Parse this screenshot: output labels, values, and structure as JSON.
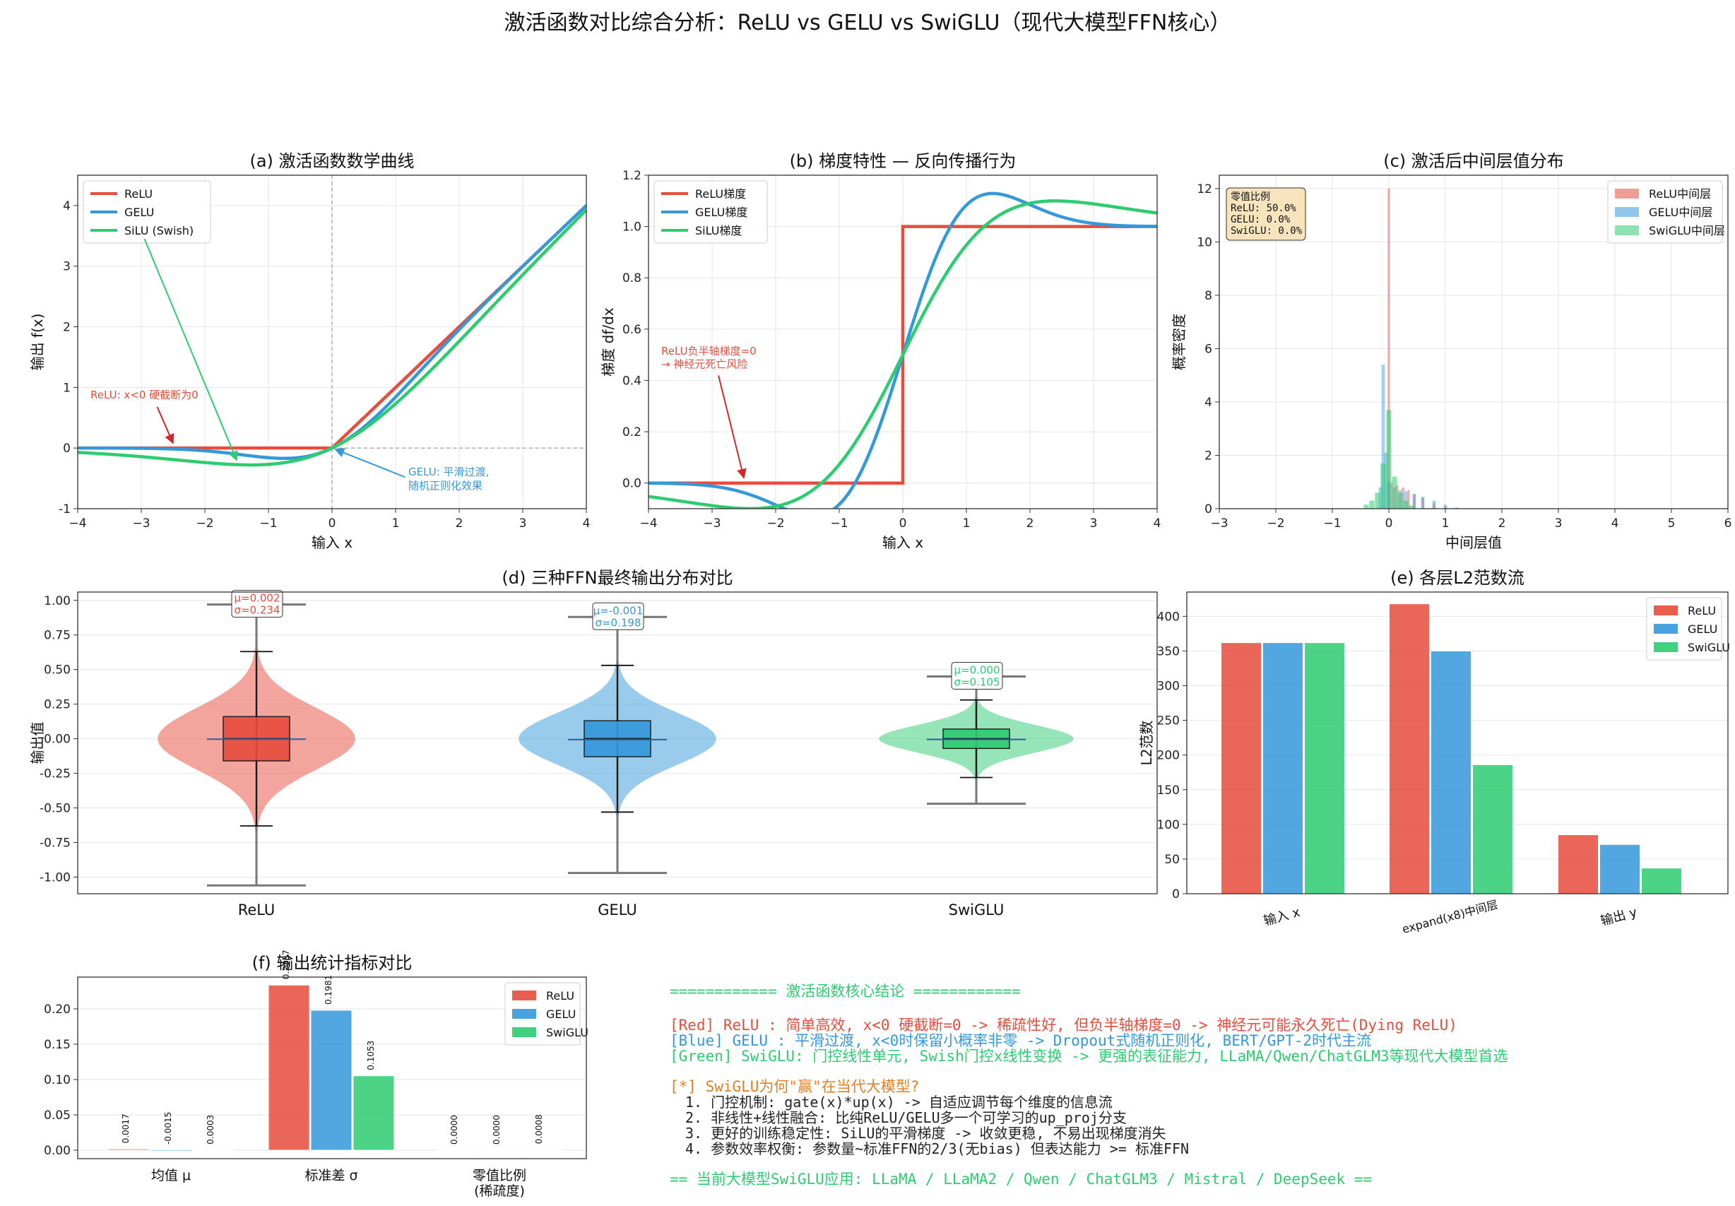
{
  "title": "激活函数对比综合分析：ReLU vs GELU vs SwiGLU（现代大模型FFN核心）",
  "colors": {
    "relu": "#e74c3c",
    "gelu": "#3498db",
    "swiglu": "#2ecc71",
    "orange": "#e67e22",
    "axis": "#333333",
    "grid": "#e6e6e6"
  },
  "panels": {
    "a": {
      "title": "(a) 激活函数数学曲线",
      "xlabel": "输入 x",
      "ylabel": "输出 f(x)",
      "legend": [
        "ReLU",
        "GELU",
        "SiLU (Swish)"
      ],
      "annotations": {
        "relu": "ReLU: x<0 硬截断为0",
        "gelu_line1": "GELU: 平滑过渡,",
        "gelu_line2": "随机正则化效果"
      }
    },
    "b": {
      "title": "(b) 梯度特性 — 反向传播行为",
      "xlabel": "输入 x",
      "ylabel": "梯度 df/dx",
      "legend": [
        "ReLU梯度",
        "GELU梯度",
        "SiLU梯度"
      ],
      "annotations": {
        "line1": "ReLU负半轴梯度=0",
        "line2": "→ 神经元死亡风险"
      }
    },
    "c": {
      "title": "(c) 激活后中间层值分布",
      "xlabel": "中间层值",
      "ylabel": "概率密度",
      "legend": [
        "ReLU中间层",
        "GELU中间层",
        "SwiGLU中间层"
      ],
      "zero_box": [
        "零值比例",
        "ReLU: 50.0%",
        "GELU: 0.0%",
        "SwiGLU: 0.0%"
      ]
    },
    "d": {
      "title": "(d) 三种FFN最终输出分布对比",
      "ylabel": "输出值",
      "stats": [
        {
          "mu": "μ=0.002",
          "sigma": "σ=0.234"
        },
        {
          "mu": "μ=-0.001",
          "sigma": "σ=0.198"
        },
        {
          "mu": "μ=0.000",
          "sigma": "σ=0.105"
        }
      ]
    },
    "e": {
      "title": "(e) 各层L2范数流",
      "ylabel": "L2范数",
      "legend": [
        "ReLU",
        "GELU",
        "SwiGLU"
      ]
    },
    "f": {
      "title": "(f) 输出统计指标对比",
      "legend": [
        "ReLU",
        "GELU",
        "SwiGLU"
      ],
      "category_lines": [
        [
          "均值 μ"
        ],
        [
          "标准差 σ"
        ],
        [
          "零值比例",
          "(稀疏度)"
        ]
      ],
      "bar_labels": [
        [
          "0.0017",
          "-0.0015",
          "0.0003"
        ],
        [
          "0.2337",
          "0.1981",
          "0.1053"
        ],
        [
          "0.0000",
          "0.0000",
          "0.0008"
        ]
      ]
    }
  },
  "conclusions": {
    "header": "============ 激活函数核心结论 ============",
    "red": "[Red] ReLU    : 简单高效, x<0 硬截断=0 -> 稀疏性好, 但负半轴梯度=0 -> 神经元可能永久死亡(Dying ReLU)",
    "blue": "[Blue] GELU   : 平滑过渡, x<0时保留小概率非零 -> Dropout式随机正则化, BERT/GPT-2时代主流",
    "green": "[Green] SwiGLU: 门控线性单元, Swish门控x线性变换 -> 更强的表征能力, LLaMA/Qwen/ChatGLM3等现代大模型首选",
    "why": "[*] SwiGLU为何\"赢\"在当代大模型?",
    "points": [
      "1. 门控机制: gate(x)*up(x) -> 自适应调节每个维度的信息流",
      "2. 非线性+线性融合: 比纯ReLU/GELU多一个可学习的up_proj分支",
      "3. 更好的训练稳定性: SiLU的平滑梯度 -> 收敛更稳, 不易出现梯度消失",
      "4. 参数效率权衡: 参数量~标准FFN的2/3(无bias) 但表达能力 >= 标准FFN"
    ],
    "footer": "== 当前大模型SwiGLU应用: LLaMA / LLaMA2 / Qwen / ChatGLM3 / Mistral / DeepSeek =="
  },
  "chart_data": [
    {
      "id": "a",
      "type": "line",
      "xlim": [
        -4,
        4
      ],
      "ylim": [
        -1,
        4.5
      ],
      "xticks": [
        -4,
        -3,
        -2,
        -1,
        0,
        1,
        2,
        3,
        4
      ],
      "yticks": [
        -1,
        0,
        1,
        2,
        3,
        4
      ],
      "grid": true,
      "legend": "top-left",
      "series": [
        {
          "name": "ReLU",
          "function": "max(0, x)",
          "x": [
            -4,
            -2,
            0,
            2,
            4
          ],
          "y": [
            0,
            0,
            0,
            2,
            4
          ]
        },
        {
          "name": "GELU",
          "function": "x*Phi(x)",
          "x": [
            -4,
            -2,
            -1,
            -0.75,
            0,
            1,
            2,
            4
          ],
          "y": [
            0,
            -0.045,
            -0.159,
            -0.17,
            0,
            0.841,
            1.955,
            4
          ]
        },
        {
          "name": "SiLU (Swish)",
          "function": "x*sigmoid(x)",
          "x": [
            -4,
            -2,
            -1.28,
            -1,
            0,
            1,
            2,
            4
          ],
          "y": [
            -0.072,
            -0.238,
            -0.278,
            -0.269,
            0,
            0.731,
            1.762,
            3.928
          ]
        }
      ]
    },
    {
      "id": "b",
      "type": "line",
      "xlim": [
        -4,
        4
      ],
      "ylim": [
        -0.1,
        1.2
      ],
      "xticks": [
        -4,
        -3,
        -2,
        -1,
        0,
        1,
        2,
        3,
        4
      ],
      "yticks": [
        0.0,
        0.2,
        0.4,
        0.6,
        0.8,
        1.0,
        1.2
      ],
      "grid": true,
      "legend": "top-left",
      "series": [
        {
          "name": "ReLU梯度",
          "x": [
            -4,
            0,
            0,
            4
          ],
          "y": [
            0,
            0,
            1,
            1
          ]
        },
        {
          "name": "GELU梯度",
          "x": [
            -4,
            -2,
            -1,
            0,
            1,
            1.5,
            2,
            4
          ],
          "y": [
            0,
            -0.085,
            -0.083,
            0.5,
            1.083,
            1.129,
            1.085,
            1.0
          ]
        },
        {
          "name": "SiLU梯度",
          "x": [
            -4,
            -2,
            -1,
            0,
            1,
            2.4,
            4
          ],
          "y": [
            -0.053,
            -0.091,
            0.072,
            0.5,
            0.928,
            1.1,
            1.053
          ]
        }
      ]
    },
    {
      "id": "c",
      "type": "histogram",
      "xlim": [
        -3,
        6
      ],
      "ylim": [
        0,
        12.5
      ],
      "xticks": [
        -3,
        -2,
        -1,
        0,
        1,
        2,
        3,
        4,
        5,
        6
      ],
      "yticks": [
        0,
        2,
        4,
        6,
        8,
        10,
        12
      ],
      "grid": true,
      "legend": "top-right",
      "series": [
        {
          "name": "ReLU中间层",
          "bin_centers": [
            0.0,
            0.05,
            0.15,
            0.25,
            0.35,
            0.45,
            0.6,
            0.8,
            1.0
          ],
          "density": [
            12.0,
            0.95,
            0.88,
            0.8,
            0.7,
            0.55,
            0.4,
            0.2,
            0.08
          ]
        },
        {
          "name": "GELU中间层",
          "bin_centers": [
            -0.15,
            -0.1,
            -0.05,
            0.0,
            0.1,
            0.2,
            0.3,
            0.45,
            0.6,
            0.8,
            1.0,
            1.2
          ],
          "density": [
            0.8,
            5.4,
            2.1,
            1.0,
            0.8,
            0.7,
            0.65,
            0.55,
            0.45,
            0.3,
            0.15,
            0.05
          ]
        },
        {
          "name": "SwiGLU中间层",
          "bin_centers": [
            -0.4,
            -0.3,
            -0.2,
            -0.1,
            0.0,
            0.1,
            0.2,
            0.3,
            0.4
          ],
          "density": [
            0.15,
            0.3,
            0.6,
            1.7,
            3.7,
            1.2,
            0.6,
            0.3,
            0.12
          ]
        }
      ],
      "zero_fraction": {
        "ReLU": "50.0%",
        "GELU": "0.0%",
        "SwiGLU": "0.0%"
      }
    },
    {
      "id": "d",
      "type": "violin",
      "categories": [
        "ReLU",
        "GELU",
        "SwiGLU"
      ],
      "ylim": [
        -1.12,
        1.06
      ],
      "yticks": [
        -1.0,
        -0.75,
        -0.5,
        -0.25,
        0.0,
        0.25,
        0.5,
        0.75,
        1.0
      ],
      "grid": true,
      "series": [
        {
          "name": "ReLU",
          "mean": 0.002,
          "std": 0.234,
          "min": -1.06,
          "max": 0.97,
          "q1": -0.16,
          "median": 0.0,
          "q3": 0.16,
          "whisker_low": -0.63,
          "whisker_high": 0.63
        },
        {
          "name": "GELU",
          "mean": -0.001,
          "std": 0.198,
          "min": -0.97,
          "max": 0.88,
          "q1": -0.13,
          "median": 0.0,
          "q3": 0.13,
          "whisker_low": -0.53,
          "whisker_high": 0.53
        },
        {
          "name": "SwiGLU",
          "mean": 0.0,
          "std": 0.105,
          "min": -0.47,
          "max": 0.45,
          "q1": -0.07,
          "median": 0.0,
          "q3": 0.07,
          "whisker_low": -0.28,
          "whisker_high": 0.28
        }
      ]
    },
    {
      "id": "e",
      "type": "bar",
      "categories": [
        "输入 x",
        "expand(x8)中间层",
        "输出 y"
      ],
      "ylim": [
        0,
        435
      ],
      "yticks": [
        0,
        50,
        100,
        150,
        200,
        250,
        300,
        350,
        400
      ],
      "grid": true,
      "legend": "top-right",
      "series": [
        {
          "name": "ReLU",
          "values": [
            362,
            418,
            85
          ]
        },
        {
          "name": "GELU",
          "values": [
            362,
            350,
            71
          ]
        },
        {
          "name": "SwiGLU",
          "values": [
            362,
            186,
            37
          ]
        }
      ]
    },
    {
      "id": "f",
      "type": "bar",
      "categories": [
        "均值 μ",
        "标准差 σ",
        "零值比例 (稀疏度)"
      ],
      "ylim": [
        -0.012,
        0.245
      ],
      "yticks": [
        0.0,
        0.05,
        0.1,
        0.15,
        0.2
      ],
      "grid": true,
      "legend": "top-right",
      "series": [
        {
          "name": "ReLU",
          "values": [
            0.0017,
            0.2337,
            0.0
          ]
        },
        {
          "name": "GELU",
          "values": [
            -0.0015,
            0.1981,
            0.0
          ]
        },
        {
          "name": "SwiGLU",
          "values": [
            0.0003,
            0.1053,
            0.0008
          ]
        }
      ]
    }
  ]
}
